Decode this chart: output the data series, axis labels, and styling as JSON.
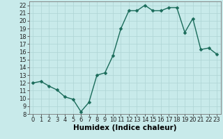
{
  "x": [
    0,
    1,
    2,
    3,
    4,
    5,
    6,
    7,
    8,
    9,
    10,
    11,
    12,
    13,
    14,
    15,
    16,
    17,
    18,
    19,
    20,
    21,
    22,
    23
  ],
  "y": [
    12.0,
    12.2,
    11.6,
    11.1,
    10.2,
    9.9,
    8.3,
    9.5,
    13.0,
    13.3,
    15.5,
    19.0,
    21.3,
    21.3,
    22.0,
    21.3,
    21.3,
    21.7,
    21.7,
    18.5,
    20.3,
    16.3,
    16.5,
    15.7
  ],
  "line_color": "#1a6b5a",
  "marker_color": "#1a6b5a",
  "bg_color": "#c8eaea",
  "grid_color": "#aed4d4",
  "xlabel": "Humidex (Indice chaleur)",
  "ylim": [
    8,
    22.5
  ],
  "xlim": [
    -0.5,
    23.5
  ],
  "yticks": [
    8,
    9,
    10,
    11,
    12,
    13,
    14,
    15,
    16,
    17,
    18,
    19,
    20,
    21,
    22
  ],
  "xticks": [
    0,
    1,
    2,
    3,
    4,
    5,
    6,
    7,
    8,
    9,
    10,
    11,
    12,
    13,
    14,
    15,
    16,
    17,
    18,
    19,
    20,
    21,
    22,
    23
  ],
  "xlabel_fontsize": 7.5,
  "tick_fontsize": 6,
  "line_width": 1.0,
  "marker_size": 2.5
}
